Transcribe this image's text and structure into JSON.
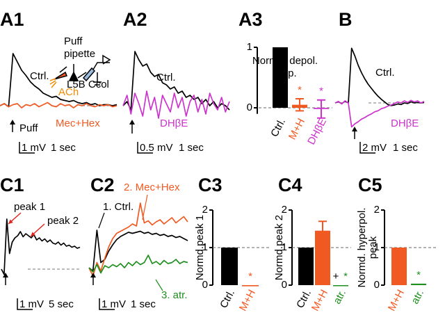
{
  "chart_data": [
    {
      "type": "line",
      "panel": "A1",
      "series": [
        {
          "name": "Ctrl.",
          "color": "#000000",
          "values": [
            0,
            0.2,
            -0.1,
            5.0,
            4.2,
            3.4,
            2.9,
            2.3,
            1.9,
            1.6,
            1.2,
            1.0,
            0.8,
            0.9,
            0.6,
            0.5,
            0.4,
            0.5,
            0.3,
            0.2,
            0.3,
            0.1,
            0.2,
            0,
            0.1,
            0.1,
            0,
            0.1
          ]
        },
        {
          "name": "Mec+Hex",
          "color": "#f05a22",
          "values": [
            0,
            0.2,
            -0.1,
            0.1,
            0.2,
            -0.2,
            0.1,
            0,
            0.2,
            -0.1,
            0.1,
            0.3,
            0,
            -0.1,
            0.2,
            0,
            0.1,
            -0.2,
            0.1,
            0,
            0.2,
            0,
            -0.1,
            0.1,
            0,
            0.1,
            -0.1,
            0
          ]
        }
      ],
      "annotations": [
        {
          "text": "Puff",
          "color": "#000000"
        },
        {
          "text": "Puff",
          "color": "#000000"
        },
        {
          "text": "pipette",
          "color": "#000000"
        },
        {
          "text": "ACh",
          "color": "#f08c00"
        },
        {
          "text": "L5B Ccol",
          "color": "#000000"
        }
      ],
      "scale_bar": [
        "1 mV",
        "1 sec"
      ],
      "dashed_baseline": true
    },
    {
      "type": "line",
      "panel": "A2",
      "series": [
        {
          "name": "Ctrl.",
          "color": "#000000",
          "values": [
            0,
            0.2,
            -0.2,
            2.6,
            2.2,
            1.9,
            2.0,
            1.6,
            1.4,
            1.5,
            1.1,
            1.0,
            0.8,
            0.9,
            0.6,
            0.7,
            0.4,
            0.5,
            0.3,
            0.4,
            0.1,
            0.3,
            0,
            0.2,
            -0.1,
            0.1,
            0,
            -0.2
          ]
        },
        {
          "name": "DHβE",
          "color": "#cc33cc",
          "values": [
            0,
            0.5,
            -0.4,
            0.6,
            0.1,
            -0.5,
            0.7,
            -0.2,
            0.4,
            -0.6,
            0.5,
            0.1,
            -0.3,
            0.6,
            -0.1,
            0.4,
            -0.5,
            0.2,
            0.5,
            -0.3,
            0.3,
            -0.4,
            0.6,
            0.1,
            -0.2,
            0.4,
            -0.3,
            0.2
          ]
        }
      ],
      "scale_bar": [
        "0.5 mV",
        "1 sec"
      ],
      "dashed_baseline": false
    },
    {
      "type": "bar",
      "panel": "A3",
      "ylabel": [
        "Normd. depol.",
        "amp."
      ],
      "categories": [
        "Ctrl.",
        "M+H",
        "DHβE"
      ],
      "values": [
        1,
        0.05,
        -0.02
      ],
      "errors": [
        null,
        0.1,
        0.15
      ],
      "colors": [
        "#000000",
        "#f05a22",
        "#cc33cc"
      ],
      "marks": [
        null,
        [
          {
            "text": "*",
            "color": "#f05a22"
          }
        ],
        [
          {
            "text": "*",
            "color": "#cc33cc"
          }
        ]
      ],
      "ylim": [
        -0.1,
        1
      ],
      "yticks": [
        0,
        1
      ],
      "ref_line": 0
    },
    {
      "type": "line",
      "panel": "B",
      "series": [
        {
          "name": "Ctrl.",
          "color": "#000000",
          "values": [
            0,
            0.2,
            -0.1,
            0.3,
            0,
            10.5,
            9.0,
            7.2,
            5.8,
            4.6,
            3.6,
            2.8,
            2.0,
            1.3,
            0.7,
            0.2,
            -0.3,
            -0.5,
            -0.4,
            -0.2,
            -0.3,
            0,
            -0.1,
            0.2,
            0,
            0.1,
            0,
            0.1
          ]
        },
        {
          "name": "DHβE",
          "color": "#cc33cc",
          "values": [
            0,
            0.3,
            -0.2,
            0.4,
            0,
            -4.6,
            -4.0,
            -3.6,
            -3.1,
            -2.8,
            -2.4,
            -2.1,
            -1.7,
            -1.5,
            -1.1,
            -0.9,
            -0.6,
            -0.4,
            -0.1,
            0.2,
            0,
            0.4,
            0.1,
            0.5,
            0.2,
            0.4,
            0,
            0.3
          ]
        }
      ],
      "scale_bar": [
        "2 mV",
        "1 sec"
      ],
      "dashed_baseline": true
    },
    {
      "type": "line",
      "panel": "C1",
      "series": [
        {
          "color": "#000000",
          "values": [
            0,
            -0.5,
            4.8,
            1.5,
            2.6,
            3.0,
            3.2,
            3.6,
            3.1,
            3.4,
            3.2,
            3.0,
            3.3,
            2.8,
            3.0,
            2.7,
            2.9,
            2.6,
            2.8,
            2.5,
            2.4,
            2.6,
            2.3,
            2.5,
            2.2,
            2.3,
            2.1,
            2.2,
            2.0,
            2.1
          ]
        }
      ],
      "annotations": [
        {
          "text": "peak 1",
          "color": "#000000"
        },
        {
          "text": "peak 2",
          "color": "#000000"
        }
      ],
      "scale_bar": [
        "1 mV",
        "5 sec"
      ],
      "dashed_baseline": true
    },
    {
      "type": "line",
      "panel": "C2",
      "series": [
        {
          "name": "1. Ctrl.",
          "color": "#000000",
          "values": [
            0,
            -0.3,
            3.6,
            0.5,
            0.8,
            1.6,
            2.2,
            2.7,
            3.0,
            3.2,
            3.4,
            3.3,
            3.4,
            3.5,
            3.3,
            3.4,
            3.2,
            3.3,
            3.1,
            3.2,
            3.0,
            3.1,
            2.9,
            3.0,
            2.8,
            2.6
          ]
        },
        {
          "name": "2. Mec+Hex",
          "color": "#f05a22",
          "values": [
            0,
            -0.8,
            0.5,
            -0.3,
            0.9,
            2.0,
            2.8,
            3.3,
            3.5,
            3.7,
            3.9,
            4.2,
            4.0,
            6.2,
            4.3,
            4.5,
            4.1,
            4.4,
            4.6,
            4.2,
            4.5,
            4.8,
            4.3,
            4.6,
            4.9,
            4.4
          ]
        },
        {
          "name": "3. atr.",
          "color": "#1f8f1f",
          "values": [
            0,
            -0.4,
            0.3,
            -0.5,
            0.2,
            0,
            0.3,
            0.1,
            0.4,
            0,
            0.5,
            0.2,
            0.6,
            0.3,
            0.5,
            1.2,
            0.4,
            0.6,
            0.3,
            0.7,
            0.4,
            0.5,
            0.8,
            0.4,
            0.6,
            0.5
          ]
        }
      ],
      "scale_bar": [
        "1 mV",
        "1 sec"
      ],
      "dashed_baseline": false
    },
    {
      "type": "bar",
      "panel": "C3",
      "ylabel": [
        "Normd.peak 1"
      ],
      "categories": [
        "Ctrl.",
        "M+H"
      ],
      "values": [
        1,
        -0.03
      ],
      "errors": [
        null,
        null
      ],
      "colors": [
        "#000000",
        "#f05a22"
      ],
      "marks": [
        null,
        [
          {
            "text": "*",
            "color": "#f05a22"
          }
        ]
      ],
      "ylim": [
        0,
        2
      ],
      "yticks": [
        0,
        1,
        2
      ],
      "ref_line": 1
    },
    {
      "type": "bar",
      "panel": "C4",
      "ylabel": [
        "Normd.peak 2"
      ],
      "categories": [
        "Ctrl.",
        "M+H",
        "atr."
      ],
      "values": [
        1,
        1.45,
        -0.02
      ],
      "errors": [
        null,
        0.25,
        null
      ],
      "colors": [
        "#000000",
        "#f05a22",
        "#1f8f1f"
      ],
      "marks": [
        null,
        null,
        [
          {
            "text": "+",
            "color": "#000000"
          },
          {
            "text": "*",
            "color": "#1f8f1f"
          }
        ]
      ],
      "ylim": [
        0,
        2
      ],
      "yticks": [
        0,
        1,
        2
      ],
      "ref_line": 1
    },
    {
      "type": "bar",
      "panel": "C5",
      "ylabel": [
        "Normd. hyperpol.",
        "peak"
      ],
      "categories": [
        "M+H",
        "atr."
      ],
      "values": [
        1,
        0.04
      ],
      "errors": [
        null,
        null
      ],
      "colors": [
        "#f05a22",
        "#1f8f1f"
      ],
      "marks": [
        null,
        [
          {
            "text": "*",
            "color": "#1f8f1f"
          }
        ]
      ],
      "ylim": [
        0,
        2
      ],
      "yticks": [
        0,
        1,
        2
      ],
      "ref_line": 1
    }
  ]
}
